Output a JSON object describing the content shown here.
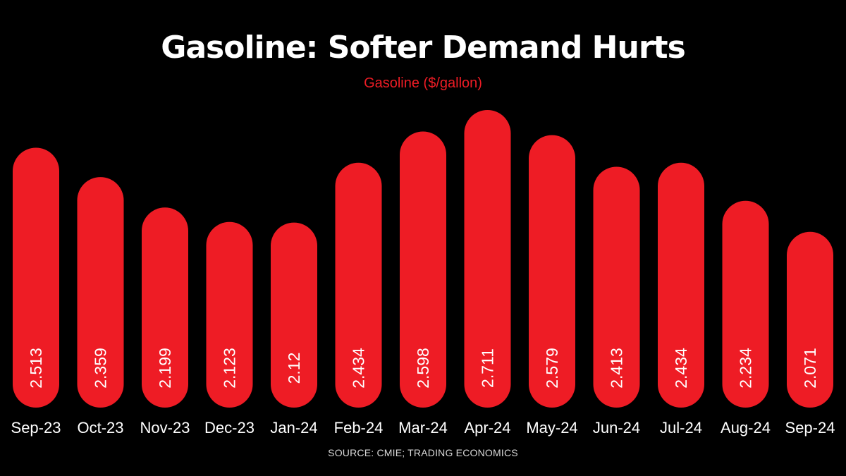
{
  "colors": {
    "background": "#000000",
    "bar": "#ee1c25",
    "title": "#ffffff",
    "subtitle": "#ee1c25",
    "label": "#ffffff",
    "source": "#d9d9d9"
  },
  "source": "SOURCE: CMIE; TRADING ECONOMICS",
  "chart_data": {
    "type": "bar",
    "title": "Gasoline: Softer Demand Hurts",
    "subtitle": "Gasoline ($/gallon)",
    "xlabel": "",
    "ylabel": "",
    "categories": [
      "Sep-23",
      "Oct-23",
      "Nov-23",
      "Dec-23",
      "Jan-24",
      "Feb-24",
      "Mar-24",
      "Apr-24",
      "May-24",
      "Jun-24",
      "Jul-24",
      "Aug-24",
      "Sep-24"
    ],
    "values": [
      2.513,
      2.359,
      2.199,
      2.123,
      2.12,
      2.434,
      2.598,
      2.711,
      2.579,
      2.413,
      2.434,
      2.234,
      2.071
    ],
    "value_labels": [
      "2.513",
      "2.359",
      "2.199",
      "2.123",
      "2.12",
      "2.434",
      "2.598",
      "2.711",
      "2.579",
      "2.413",
      "2.434",
      "2.234",
      "2.071"
    ],
    "ylim": [
      0,
      2.711
    ],
    "grid": false,
    "legend": "none",
    "value_label_orientation": "vertical"
  }
}
